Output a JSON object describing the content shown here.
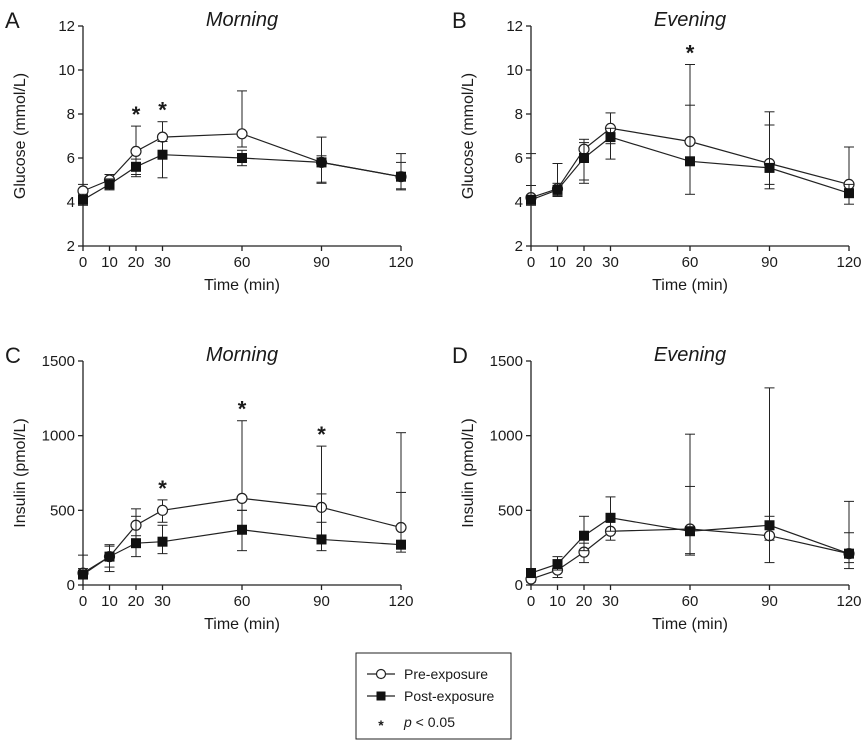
{
  "legend": {
    "items": [
      {
        "label": "Pre-exposure",
        "marker": "open-circle"
      },
      {
        "label": "Post-exposure",
        "marker": "filled-square"
      }
    ],
    "significance": {
      "symbol": "*",
      "italic": "p",
      "rest": " < 0.05"
    }
  },
  "chart_data": [
    {
      "type": "line",
      "panel": "A",
      "title": "Morning",
      "xlabel": "Time (min)",
      "ylabel": "Glucose (mmol/L)",
      "ylim": [
        2,
        12
      ],
      "xticks": [
        0,
        10,
        20,
        30,
        60,
        90,
        120
      ],
      "yticks": [
        2,
        4,
        6,
        8,
        10,
        12
      ],
      "x": [
        0,
        10,
        20,
        30,
        60,
        90,
        120
      ],
      "series": [
        {
          "name": "Pre-exposure",
          "marker": "open-circle",
          "values": [
            4.5,
            5.0,
            6.3,
            6.95,
            7.1,
            5.8,
            5.15
          ],
          "error_upper": [
            4.8,
            5.25,
            7.45,
            7.65,
            9.05,
            6.95,
            6.2
          ],
          "error_lower": [
            4.2,
            4.75,
            5.15,
            6.25,
            6.5,
            4.85,
            4.6
          ]
        },
        {
          "name": "Post-exposure",
          "marker": "filled-square",
          "values": [
            4.1,
            4.8,
            5.6,
            6.15,
            6.0,
            5.8,
            5.15
          ],
          "error_upper": [
            4.35,
            5.05,
            5.95,
            6.75,
            6.35,
            6.1,
            5.8
          ],
          "error_lower": [
            3.85,
            4.55,
            5.25,
            5.1,
            5.65,
            4.9,
            4.55
          ]
        }
      ],
      "significance_x": [
        20,
        30
      ]
    },
    {
      "type": "line",
      "panel": "B",
      "title": "Evening",
      "xlabel": "Time (min)",
      "ylabel": "Glucose (mmol/L)",
      "ylim": [
        2,
        12
      ],
      "xticks": [
        0,
        10,
        20,
        30,
        60,
        90,
        120
      ],
      "yticks": [
        2,
        4,
        6,
        8,
        10,
        12
      ],
      "x": [
        0,
        10,
        20,
        30,
        60,
        90,
        120
      ],
      "series": [
        {
          "name": "Pre-exposure",
          "marker": "open-circle",
          "values": [
            4.2,
            4.6,
            6.4,
            7.35,
            6.75,
            5.75,
            4.8
          ],
          "error_upper": [
            6.2,
            5.75,
            6.85,
            8.05,
            10.25,
            8.1,
            6.5
          ],
          "error_lower": [
            3.9,
            4.3,
            5.0,
            6.65,
            5.9,
            4.8,
            4.4
          ]
        },
        {
          "name": "Post-exposure",
          "marker": "filled-square",
          "values": [
            4.1,
            4.55,
            6.0,
            6.95,
            5.85,
            5.55,
            4.4
          ],
          "error_upper": [
            4.75,
            4.85,
            6.7,
            7.35,
            8.4,
            7.5,
            4.8
          ],
          "error_lower": [
            3.85,
            4.25,
            4.85,
            5.95,
            4.35,
            4.6,
            3.9
          ]
        }
      ],
      "significance_x": [
        60
      ]
    },
    {
      "type": "line",
      "panel": "C",
      "title": "Morning",
      "xlabel": "Time (min)",
      "ylabel": "Insulin (pmol/L)",
      "ylim": [
        0,
        1500
      ],
      "xticks": [
        0,
        10,
        20,
        30,
        60,
        90,
        120
      ],
      "yticks": [
        0,
        500,
        1000,
        1500
      ],
      "x": [
        0,
        10,
        20,
        30,
        60,
        90,
        120
      ],
      "series": [
        {
          "name": "Pre-exposure",
          "marker": "open-circle",
          "values": [
            80,
            190,
            400,
            500,
            580,
            520,
            385
          ],
          "error_upper": [
            200,
            270,
            510,
            570,
            1100,
            930,
            1020
          ],
          "error_lower": [
            50,
            120,
            330,
            420,
            500,
            420,
            260
          ]
        },
        {
          "name": "Post-exposure",
          "marker": "filled-square",
          "values": [
            70,
            190,
            280,
            290,
            370,
            305,
            270
          ],
          "error_upper": [
            110,
            260,
            460,
            400,
            500,
            610,
            620
          ],
          "error_lower": [
            50,
            90,
            190,
            210,
            230,
            230,
            220
          ]
        }
      ],
      "significance_x": [
        30,
        60,
        90
      ]
    },
    {
      "type": "line",
      "panel": "D",
      "title": "Evening",
      "xlabel": "Time (min)",
      "ylabel": "Insulin (pmol/L)",
      "ylim": [
        0,
        1500
      ],
      "xticks": [
        0,
        10,
        20,
        30,
        60,
        90,
        120
      ],
      "yticks": [
        0,
        500,
        1000,
        1500
      ],
      "x": [
        0,
        10,
        20,
        30,
        60,
        90,
        120
      ],
      "series": [
        {
          "name": "Pre-exposure",
          "marker": "open-circle",
          "values": [
            40,
            100,
            220,
            360,
            375,
            330,
            210
          ],
          "error_upper": [
            70,
            150,
            280,
            420,
            1010,
            1320,
            560
          ],
          "error_lower": [
            20,
            50,
            150,
            300,
            210,
            150,
            110
          ]
        },
        {
          "name": "Post-exposure",
          "marker": "filled-square",
          "values": [
            80,
            140,
            330,
            450,
            360,
            400,
            210
          ],
          "error_upper": [
            110,
            190,
            460,
            590,
            660,
            460,
            350
          ],
          "error_lower": [
            60,
            100,
            230,
            360,
            200,
            300,
            150
          ]
        }
      ],
      "significance_x": []
    }
  ]
}
